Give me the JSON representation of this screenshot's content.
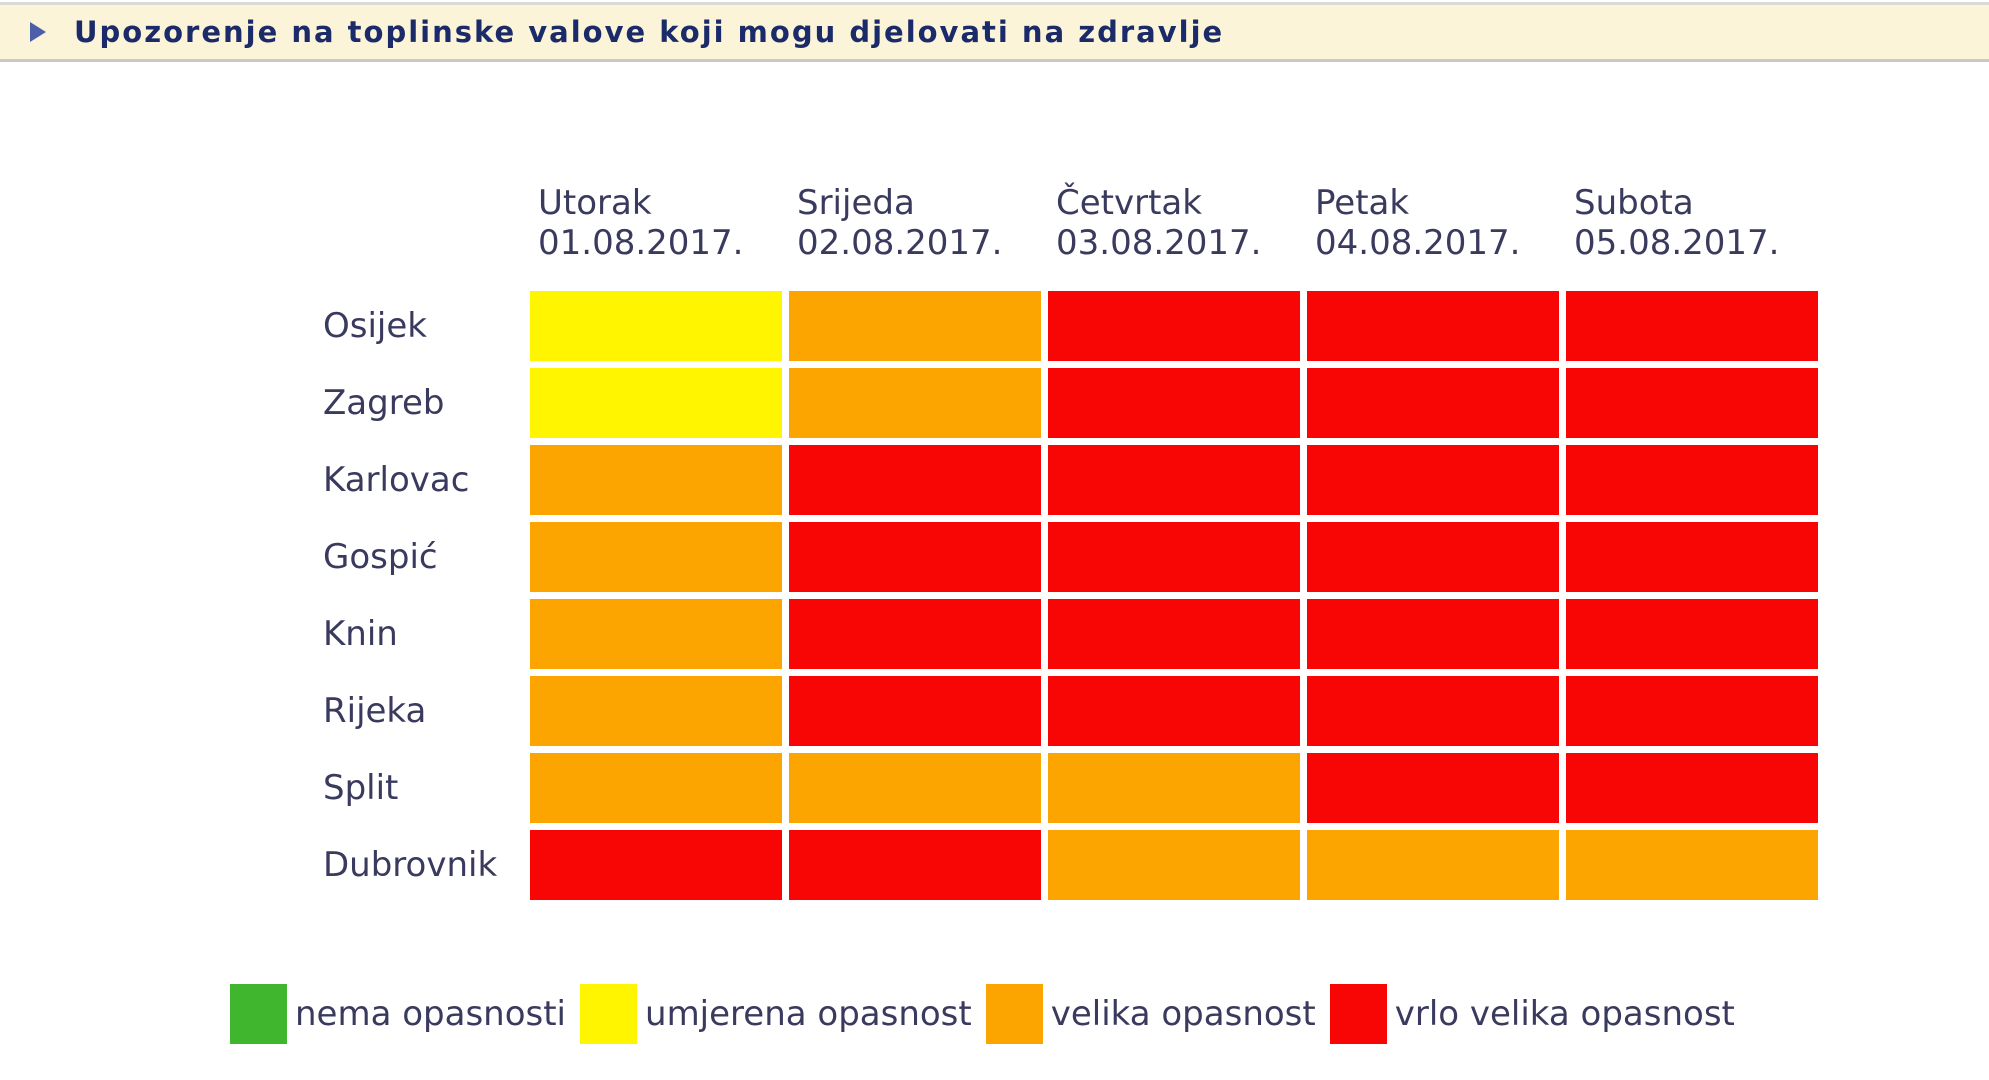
{
  "chart_data": {
    "type": "heatmap",
    "title": "Upozorenje na toplinske valove koji mogu djelovati na zdravlje",
    "columns": [
      {
        "day": "Utorak",
        "date": "01.08.2017."
      },
      {
        "day": "Srijeda",
        "date": "02.08.2017."
      },
      {
        "day": "Četvrtak",
        "date": "03.08.2017."
      },
      {
        "day": "Petak",
        "date": "04.08.2017."
      },
      {
        "day": "Subota",
        "date": "05.08.2017."
      }
    ],
    "rows": [
      {
        "city": "Osijek",
        "levels": [
          "umjerena",
          "velika",
          "vrlo velika",
          "vrlo velika",
          "vrlo velika"
        ]
      },
      {
        "city": "Zagreb",
        "levels": [
          "umjerena",
          "velika",
          "vrlo velika",
          "vrlo velika",
          "vrlo velika"
        ]
      },
      {
        "city": "Karlovac",
        "levels": [
          "velika",
          "vrlo velika",
          "vrlo velika",
          "vrlo velika",
          "vrlo velika"
        ]
      },
      {
        "city": "Gospić",
        "levels": [
          "velika",
          "vrlo velika",
          "vrlo velika",
          "vrlo velika",
          "vrlo velika"
        ]
      },
      {
        "city": "Knin",
        "levels": [
          "velika",
          "vrlo velika",
          "vrlo velika",
          "vrlo velika",
          "vrlo velika"
        ]
      },
      {
        "city": "Rijeka",
        "levels": [
          "velika",
          "vrlo velika",
          "vrlo velika",
          "vrlo velika",
          "vrlo velika"
        ]
      },
      {
        "city": "Split",
        "levels": [
          "velika",
          "velika",
          "velika",
          "vrlo velika",
          "vrlo velika"
        ]
      },
      {
        "city": "Dubrovnik",
        "levels": [
          "vrlo velika",
          "vrlo velika",
          "velika",
          "velika",
          "velika"
        ]
      }
    ],
    "level_colors": {
      "nema": "#3FB62E",
      "umjerena": "#FFF500",
      "velika": "#FCA400",
      "vrlo velika": "#F80505"
    },
    "legend": [
      {
        "level": "nema",
        "label": "nema opasnosti"
      },
      {
        "level": "umjerena",
        "label": "umjerena opasnost"
      },
      {
        "level": "velika",
        "label": "velika opasnost"
      },
      {
        "level": "vrlo velika",
        "label": "vrlo velika opasnost"
      }
    ],
    "layout": {
      "legend_position": "bottom",
      "grid": "off",
      "header_bar_background": "#FBF4D8",
      "title_color": "#1B2B69",
      "label_color": "#3A3A5E"
    }
  }
}
